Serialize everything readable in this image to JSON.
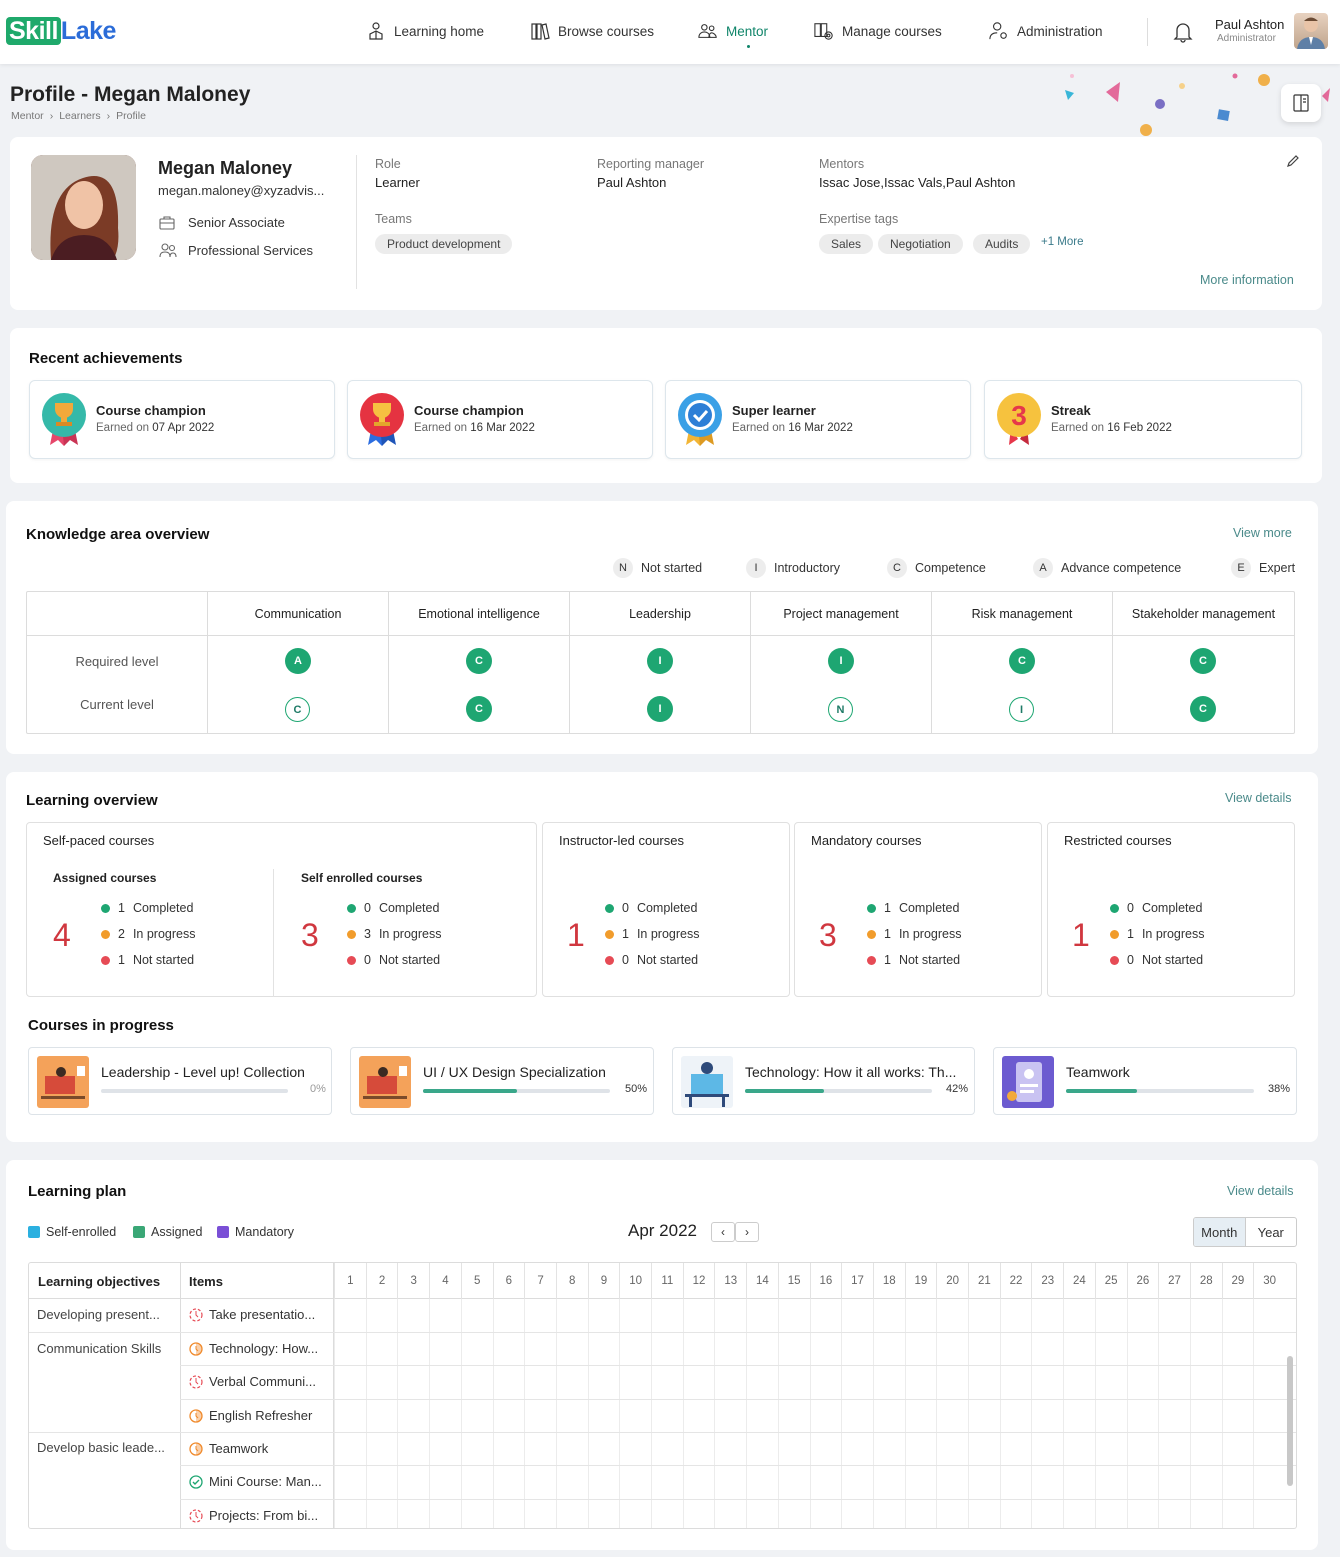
{
  "brand": {
    "part1": "Skill",
    "part2": "Lake"
  },
  "nav": {
    "items": [
      {
        "label": "Learning home",
        "icon": "learning-home-icon"
      },
      {
        "label": "Browse courses",
        "icon": "books-icon"
      },
      {
        "label": "Mentor",
        "icon": "mentor-icon",
        "active": true
      },
      {
        "label": "Manage courses",
        "icon": "manage-courses-icon"
      },
      {
        "label": "Administration",
        "icon": "admin-icon"
      }
    ]
  },
  "user": {
    "name": "Paul Ashton",
    "role": "Administrator"
  },
  "page": {
    "title": "Profile - Megan Maloney",
    "breadcrumb": [
      "Mentor",
      "Learners",
      "Profile"
    ]
  },
  "profile": {
    "name": "Megan Maloney",
    "email": "megan.maloney@xyzadvis...",
    "designation": "Senior Associate",
    "department": "Professional Services",
    "role_label": "Role",
    "role": "Learner",
    "manager_label": "Reporting manager",
    "manager": "Paul Ashton",
    "mentors_label": "Mentors",
    "mentors": "Issac Jose,Issac Vals,Paul Ashton",
    "teams_label": "Teams",
    "teams": [
      "Product development"
    ],
    "tags_label": "Expertise tags",
    "tags": [
      "Sales",
      "Negotiation",
      "Audits"
    ],
    "tags_more": "+1 More",
    "more_info": "More information"
  },
  "achievements": {
    "title": "Recent achievements",
    "earned_prefix": "Earned on",
    "items": [
      {
        "title": "Course champion",
        "date": "07 Apr 2022"
      },
      {
        "title": "Course champion",
        "date": "16 Mar 2022"
      },
      {
        "title": "Super learner",
        "date": "16 Mar 2022"
      },
      {
        "title": "Streak",
        "date": "16 Feb 2022",
        "badge_text": "3"
      }
    ]
  },
  "knowledge": {
    "title": "Knowledge area overview",
    "view_more": "View more",
    "legend": [
      {
        "code": "N",
        "label": "Not started"
      },
      {
        "code": "I",
        "label": "Introductory"
      },
      {
        "code": "C",
        "label": "Competence"
      },
      {
        "code": "A",
        "label": "Advance competence"
      },
      {
        "code": "E",
        "label": "Expert"
      }
    ],
    "row_labels": [
      "Required level",
      "Current level"
    ],
    "areas": [
      {
        "name": "Communication",
        "required": "A",
        "current": "C"
      },
      {
        "name": "Emotional intelligence",
        "required": "C",
        "current": "C"
      },
      {
        "name": "Leadership",
        "required": "I",
        "current": "I"
      },
      {
        "name": "Project management",
        "required": "I",
        "current": "N"
      },
      {
        "name": "Risk management",
        "required": "C",
        "current": "I"
      },
      {
        "name": "Stakeholder management",
        "required": "C",
        "current": "C"
      }
    ]
  },
  "learning": {
    "title": "Learning overview",
    "view_details": "View details",
    "self_paced": {
      "title": "Self-paced courses",
      "assigned": {
        "title": "Assigned courses",
        "total": "4",
        "completed": "1",
        "in_progress": "2",
        "not_started": "1"
      },
      "self_enrolled": {
        "title": "Self enrolled courses",
        "total": "3",
        "completed": "0",
        "in_progress": "3",
        "not_started": "0"
      }
    },
    "instructor": {
      "title": "Instructor-led courses",
      "total": "1",
      "completed": "0",
      "in_progress": "1",
      "not_started": "0"
    },
    "mandatory": {
      "title": "Mandatory courses",
      "total": "3",
      "completed": "1",
      "in_progress": "1",
      "not_started": "1"
    },
    "restricted": {
      "title": "Restricted courses",
      "total": "1",
      "completed": "0",
      "in_progress": "1",
      "not_started": "0"
    },
    "labels": {
      "completed": "Completed",
      "in_progress": "In progress",
      "not_started": "Not started"
    }
  },
  "courses": {
    "title": "Courses in progress",
    "items": [
      {
        "title": "Leadership - Level up! Collection",
        "progress": 0,
        "label": "0%"
      },
      {
        "title": "UI / UX Design Specialization",
        "progress": 50,
        "label": "50%"
      },
      {
        "title": "Technology: How it all works: Th...",
        "progress": 42,
        "label": "42%"
      },
      {
        "title": "Teamwork",
        "progress": 38,
        "label": "38%"
      }
    ]
  },
  "plan": {
    "title": "Learning plan",
    "view_details": "View details",
    "legend": [
      {
        "label": "Self-enrolled",
        "color": "#2bb0e0"
      },
      {
        "label": "Assigned",
        "color": "#3aa776"
      },
      {
        "label": "Mandatory",
        "color": "#7a4fd6"
      }
    ],
    "month": "Apr 2022",
    "views": [
      "Month",
      "Year"
    ],
    "col_objectives": "Learning objectives",
    "col_items": "Items",
    "days": [
      "1",
      "2",
      "3",
      "4",
      "5",
      "6",
      "7",
      "8",
      "9",
      "10",
      "11",
      "12",
      "13",
      "14",
      "15",
      "16",
      "17",
      "18",
      "19",
      "20",
      "21",
      "22",
      "23",
      "24",
      "25",
      "26",
      "27",
      "28",
      "29",
      "30"
    ],
    "rows": [
      {
        "objective": "Developing present...",
        "item": "Take presentatio...",
        "status": "not-started"
      },
      {
        "objective": "Communication Skills",
        "item": "Technology: How...",
        "status": "in-progress"
      },
      {
        "objective": "",
        "item": "Verbal Communi...",
        "status": "not-started"
      },
      {
        "objective": "",
        "item": "English Refresher",
        "status": "in-progress"
      },
      {
        "objective": "Develop basic leade...",
        "item": "Teamwork",
        "status": "in-progress"
      },
      {
        "objective": "",
        "item": "Mini Course: Man...",
        "status": "completed"
      },
      {
        "objective": "",
        "item": "Projects: From bi...",
        "status": "not-started"
      }
    ]
  }
}
